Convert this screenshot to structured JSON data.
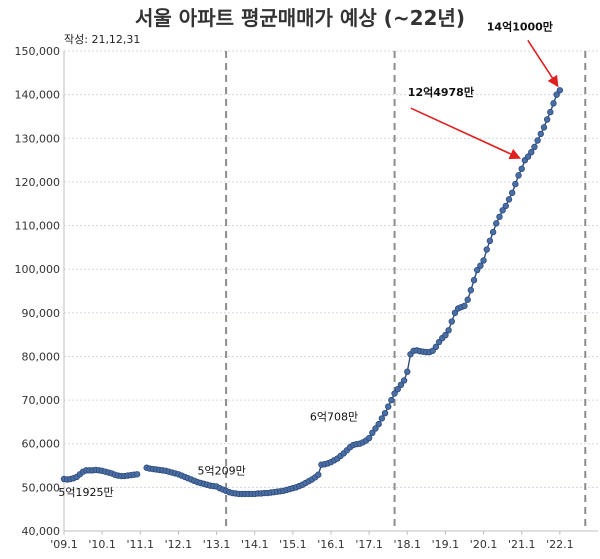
{
  "chart_data": {
    "type": "line",
    "title": "서울 아파트 평균매매가 예상 (~22년)",
    "subtitle": "작성: 21,12,31",
    "xlabel": "",
    "ylabel": "",
    "ylim": [
      40000,
      150000
    ],
    "y_ticks": [
      40000,
      50000,
      60000,
      70000,
      80000,
      90000,
      100000,
      110000,
      120000,
      130000,
      140000,
      150000
    ],
    "y_tick_labels": [
      "40,000",
      "50,000",
      "60,000",
      "70,000",
      "80,000",
      "90,000",
      "100,000",
      "110,000",
      "120,000",
      "130,000",
      "140,000",
      "150,000"
    ],
    "x_ticks": [
      "'09.1",
      "'10.1",
      "'11.1",
      "'12.1",
      "'13.1",
      "'14.1",
      "'15.1",
      "'16.1",
      "'17.1",
      "'18.1",
      "'19.1",
      "'20.1",
      "'21.1",
      "'22.1"
    ],
    "xlim_months": [
      0,
      168
    ],
    "grid": true,
    "colors": {
      "series": "#2f4b7c",
      "marker_fill": "#4a6fa5",
      "arrow": "#e02020",
      "vline": "#8c8c8c",
      "grid": "#cfd8e3"
    },
    "vertical_lines": [
      {
        "month": 51
      },
      {
        "month": 104
      },
      {
        "month": 164
      }
    ],
    "series": [
      {
        "points": [
          [
            0,
            51925
          ],
          [
            1,
            51800
          ],
          [
            2,
            51900
          ],
          [
            3,
            52100
          ],
          [
            4,
            52400
          ],
          [
            5,
            53000
          ],
          [
            6,
            53600
          ],
          [
            7,
            53900
          ],
          [
            8,
            53900
          ],
          [
            9,
            53900
          ],
          [
            10,
            54000
          ],
          [
            11,
            53900
          ],
          [
            12,
            53800
          ],
          [
            13,
            53600
          ],
          [
            14,
            53400
          ],
          [
            15,
            53200
          ],
          [
            16,
            52900
          ],
          [
            17,
            52700
          ],
          [
            18,
            52600
          ],
          [
            19,
            52600
          ],
          [
            20,
            52700
          ],
          [
            21,
            52800
          ],
          [
            22,
            52900
          ],
          [
            23,
            53000
          ],
          [
            26,
            54500
          ],
          [
            27,
            54300
          ],
          [
            28,
            54200
          ],
          [
            29,
            54100
          ],
          [
            30,
            54000
          ],
          [
            31,
            53900
          ],
          [
            32,
            53800
          ],
          [
            33,
            53600
          ],
          [
            34,
            53400
          ],
          [
            35,
            53200
          ],
          [
            36,
            53000
          ],
          [
            37,
            52700
          ],
          [
            38,
            52400
          ],
          [
            39,
            52100
          ],
          [
            40,
            51800
          ],
          [
            41,
            51500
          ],
          [
            42,
            51200
          ],
          [
            43,
            51000
          ],
          [
            44,
            50800
          ],
          [
            45,
            50600
          ],
          [
            46,
            50400
          ],
          [
            47,
            50300
          ],
          [
            48,
            50209
          ],
          [
            49,
            49800
          ],
          [
            50,
            49500
          ],
          [
            51,
            49200
          ],
          [
            52,
            48900
          ],
          [
            53,
            48700
          ],
          [
            54,
            48600
          ],
          [
            55,
            48500
          ],
          [
            56,
            48500
          ],
          [
            57,
            48500
          ],
          [
            58,
            48500
          ],
          [
            59,
            48500
          ],
          [
            60,
            48500
          ],
          [
            61,
            48600
          ],
          [
            62,
            48600
          ],
          [
            63,
            48700
          ],
          [
            64,
            48700
          ],
          [
            65,
            48800
          ],
          [
            66,
            48900
          ],
          [
            67,
            49000
          ],
          [
            68,
            49100
          ],
          [
            69,
            49200
          ],
          [
            70,
            49400
          ],
          [
            71,
            49600
          ],
          [
            72,
            49800
          ],
          [
            73,
            50000
          ],
          [
            74,
            50300
          ],
          [
            75,
            50600
          ],
          [
            76,
            51000
          ],
          [
            77,
            51400
          ],
          [
            78,
            51800
          ],
          [
            79,
            52300
          ],
          [
            80,
            52900
          ],
          [
            81,
            55200
          ],
          [
            82,
            55300
          ],
          [
            83,
            55500
          ],
          [
            84,
            55800
          ],
          [
            85,
            56200
          ],
          [
            86,
            56600
          ],
          [
            87,
            57200
          ],
          [
            88,
            57800
          ],
          [
            89,
            58500
          ],
          [
            90,
            59200
          ],
          [
            91,
            59700
          ],
          [
            92,
            59900
          ],
          [
            93,
            60000
          ],
          [
            94,
            60300
          ],
          [
            95,
            60708
          ],
          [
            96,
            61300
          ],
          [
            97,
            62500
          ],
          [
            98,
            63500
          ],
          [
            99,
            64500
          ],
          [
            100,
            65800
          ],
          [
            101,
            67000
          ],
          [
            102,
            68500
          ],
          [
            103,
            70000
          ],
          [
            104,
            71500
          ],
          [
            105,
            72500
          ],
          [
            106,
            73500
          ],
          [
            107,
            74500
          ],
          [
            108,
            76500
          ],
          [
            109,
            80500
          ],
          [
            110,
            81300
          ],
          [
            111,
            81400
          ],
          [
            112,
            81200
          ],
          [
            113,
            81100
          ],
          [
            114,
            81000
          ],
          [
            115,
            81000
          ],
          [
            116,
            81300
          ],
          [
            117,
            82200
          ],
          [
            118,
            83300
          ],
          [
            119,
            84200
          ],
          [
            120,
            84900
          ],
          [
            121,
            86000
          ],
          [
            122,
            88000
          ],
          [
            123,
            90000
          ],
          [
            124,
            91000
          ],
          [
            125,
            91300
          ],
          [
            126,
            91600
          ],
          [
            127,
            93000
          ],
          [
            128,
            95200
          ],
          [
            129,
            97500
          ],
          [
            130,
            99800
          ],
          [
            131,
            100800
          ],
          [
            132,
            102000
          ],
          [
            133,
            104500
          ],
          [
            134,
            106500
          ],
          [
            135,
            108500
          ],
          [
            136,
            110500
          ],
          [
            137,
            112000
          ],
          [
            138,
            113500
          ],
          [
            139,
            114500
          ],
          [
            140,
            116000
          ],
          [
            141,
            117500
          ],
          [
            142,
            119500
          ],
          [
            143,
            121500
          ],
          [
            144,
            123000
          ],
          [
            145,
            124978
          ],
          [
            146,
            125800
          ],
          [
            147,
            126800
          ],
          [
            148,
            128000
          ],
          [
            149,
            129500
          ],
          [
            150,
            131000
          ],
          [
            151,
            132500
          ],
          [
            152,
            134300
          ],
          [
            153,
            136000
          ],
          [
            154,
            138000
          ],
          [
            155,
            140000
          ],
          [
            156,
            141000
          ]
        ]
      }
    ],
    "annotations": [
      {
        "text": "5억1925만",
        "month": 0,
        "value": 51925,
        "bold": false
      },
      {
        "text": "5억209만",
        "month": 48,
        "value": 50209,
        "bold": false
      },
      {
        "text": "6억708만",
        "month": 95,
        "value": 60708,
        "bold": false
      },
      {
        "text": "12억4978만",
        "month": 145,
        "value": 124978,
        "bold": true,
        "arrow": true
      },
      {
        "text": "14억1000만",
        "month": 156,
        "value": 141000,
        "bold": true,
        "arrow": true
      }
    ]
  }
}
